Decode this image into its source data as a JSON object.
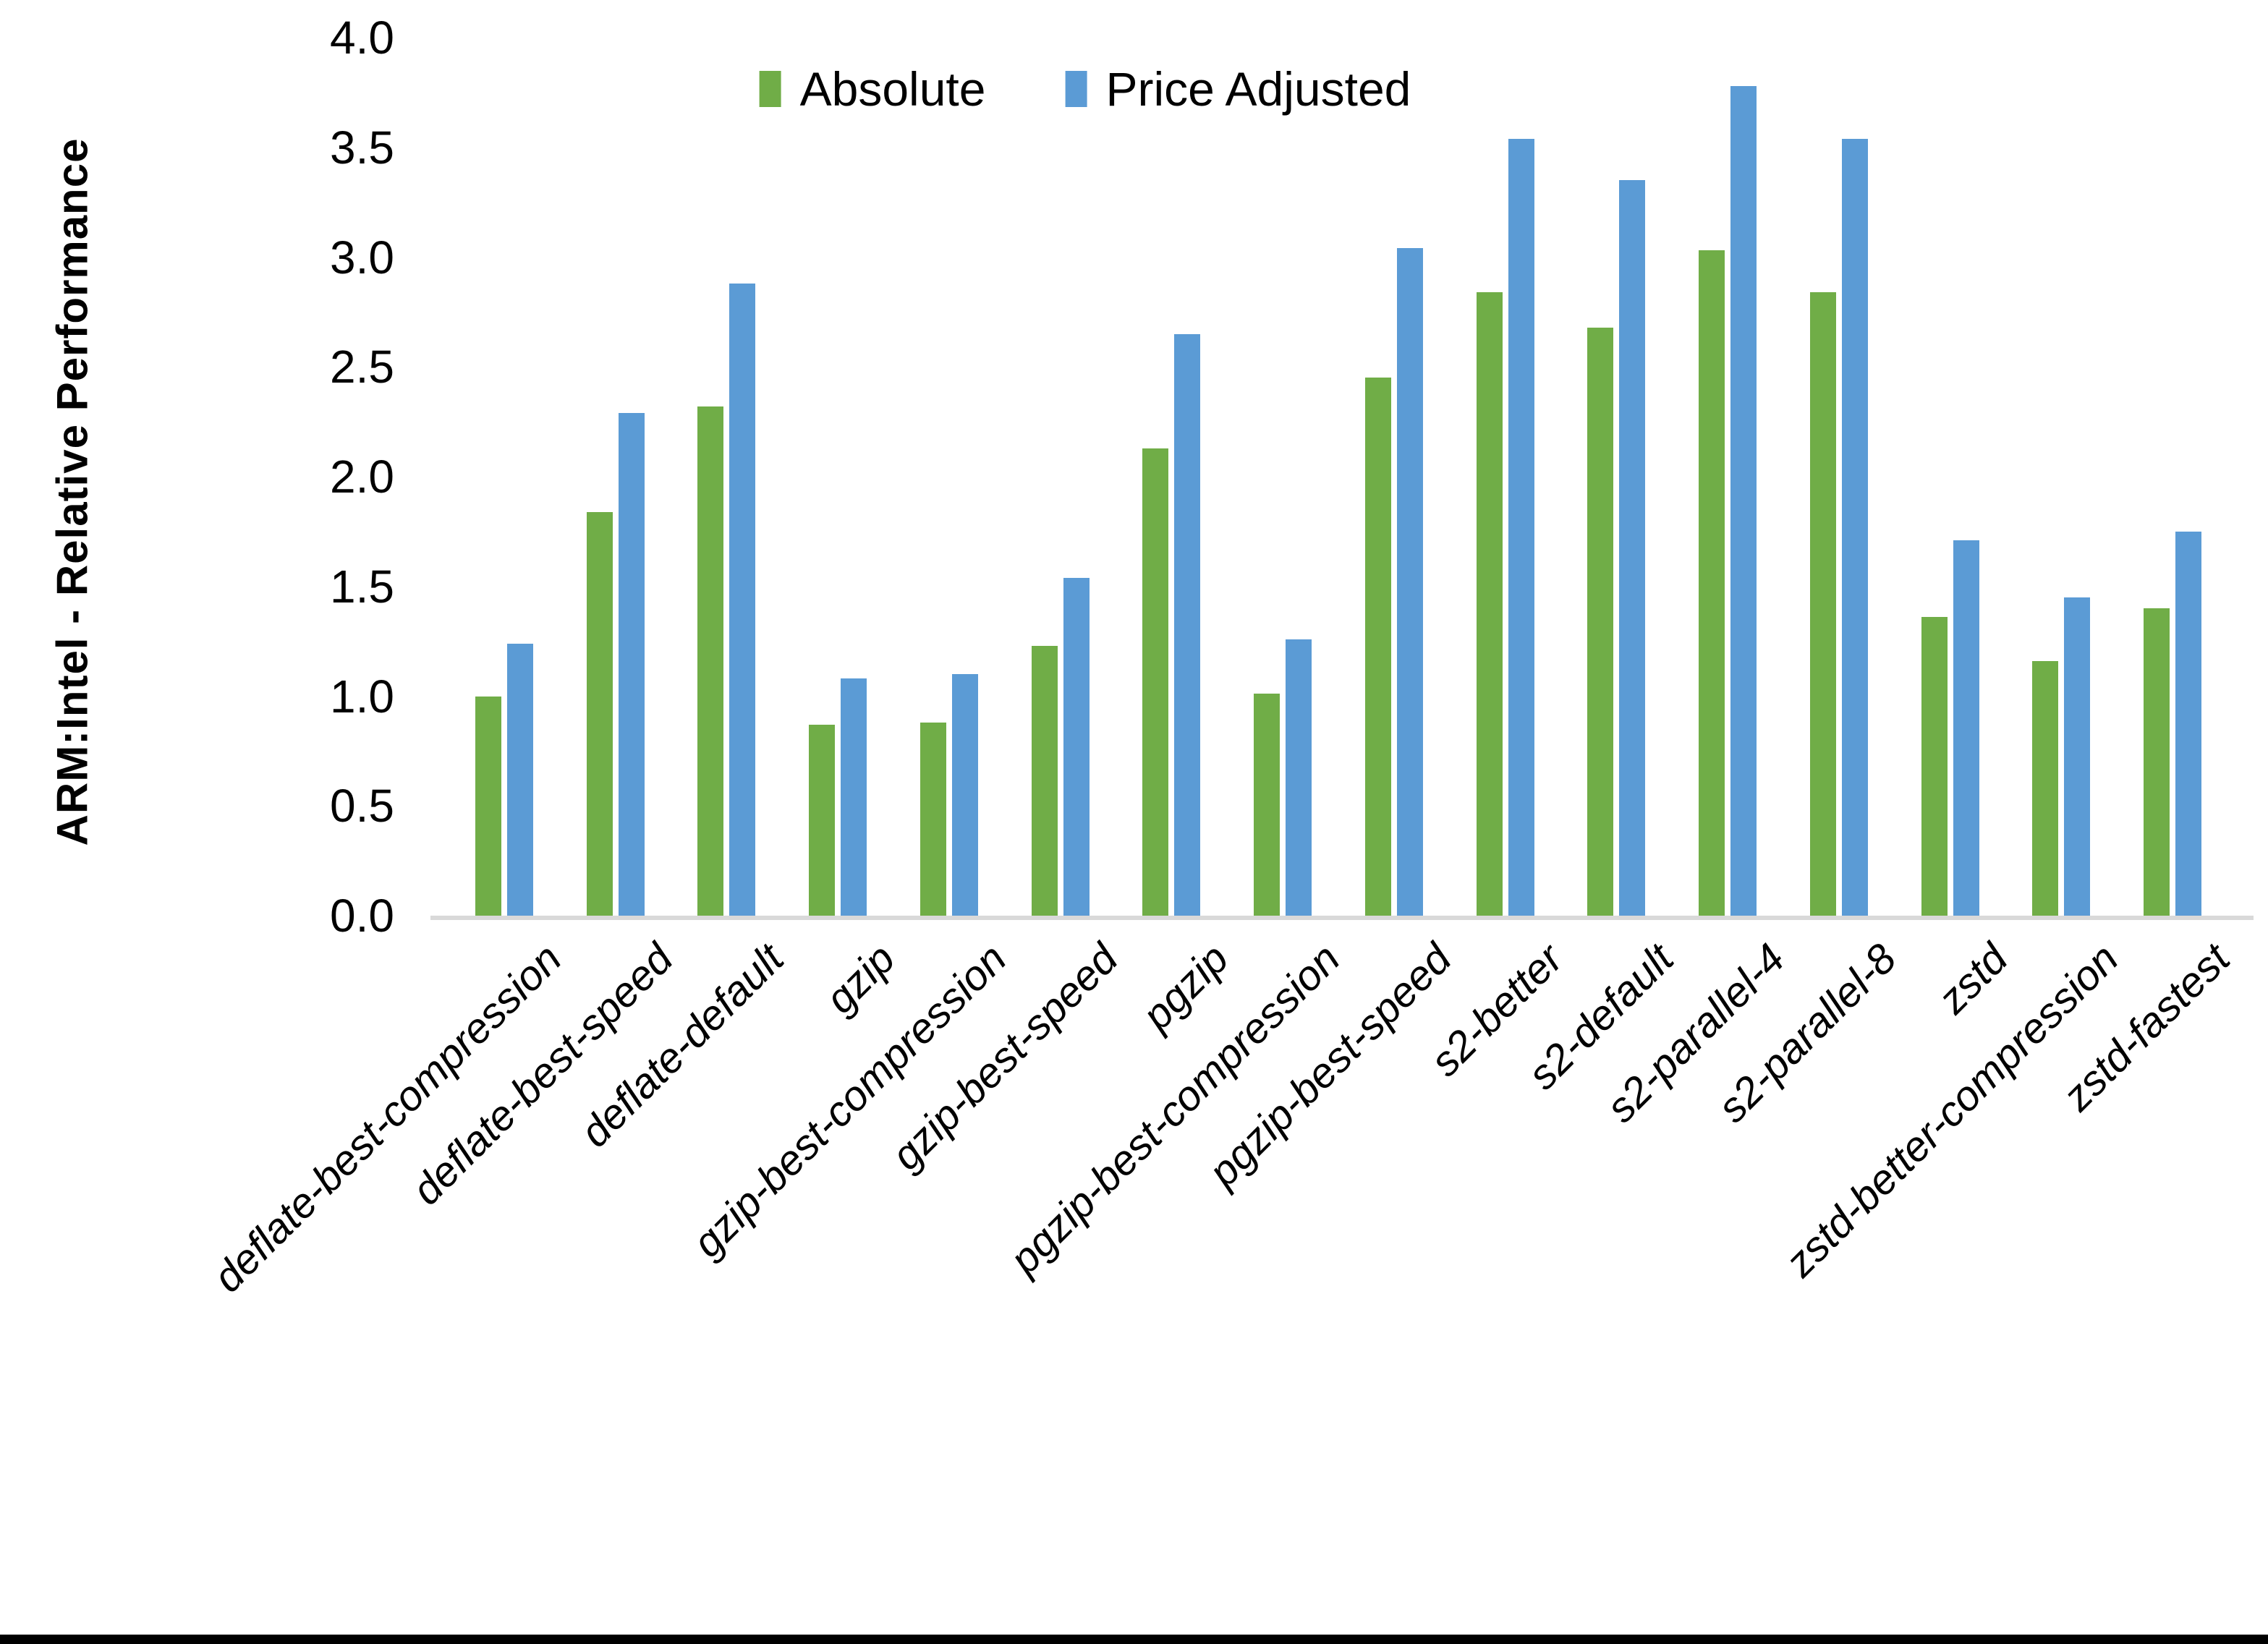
{
  "page": {
    "background": "#FFFFFF",
    "bottom_bar_color": "#000000"
  },
  "y_axis": {
    "title": "ARM:Intel - Relative Performance",
    "min": 0.0,
    "max": 4.0,
    "tick_step": 0.5,
    "tick_labels": [
      "4.0",
      "3.5",
      "3.0",
      "2.5",
      "2.0",
      "1.5",
      "1.0",
      "0.5",
      "0.0"
    ],
    "axis_line_color": "#D9D9D9"
  },
  "legend": {
    "items": [
      {
        "label": "Absolute",
        "color": "#70AD47"
      },
      {
        "label": "Price Adjusted",
        "color": "#5B9BD5"
      }
    ]
  },
  "chart_data": {
    "type": "bar",
    "title": "",
    "xlabel": "",
    "ylabel": "ARM:Intel - Relative Performance",
    "ylim": [
      0.0,
      4.0
    ],
    "ytick_step": 0.5,
    "grid": false,
    "legend_position": "top-center",
    "categories": [
      "deflate-best-compression",
      "deflate-best-speed",
      "deflate-default",
      "gzip",
      "gzip-best-compression",
      "gzip-best-speed",
      "pgzip",
      "pgzip-best-compression",
      "pgzip-best-speed",
      "s2-better",
      "s2-default",
      "s2-parallel-4",
      "s2-parallel-8",
      "zstd",
      "zstd-better-compression",
      "zstd-fastest"
    ],
    "series": [
      {
        "name": "Absolute",
        "color": "#70AD47",
        "values": [
          1.0,
          1.84,
          2.32,
          0.87,
          0.88,
          1.23,
          2.13,
          1.01,
          2.45,
          2.84,
          2.68,
          3.03,
          2.84,
          1.36,
          1.16,
          1.4
        ]
      },
      {
        "name": "Price Adjusted",
        "color": "#5B9BD5",
        "values": [
          1.24,
          2.29,
          2.88,
          1.08,
          1.1,
          1.54,
          2.65,
          1.26,
          3.04,
          3.54,
          3.35,
          3.78,
          3.54,
          1.71,
          1.45,
          1.75
        ]
      }
    ]
  }
}
